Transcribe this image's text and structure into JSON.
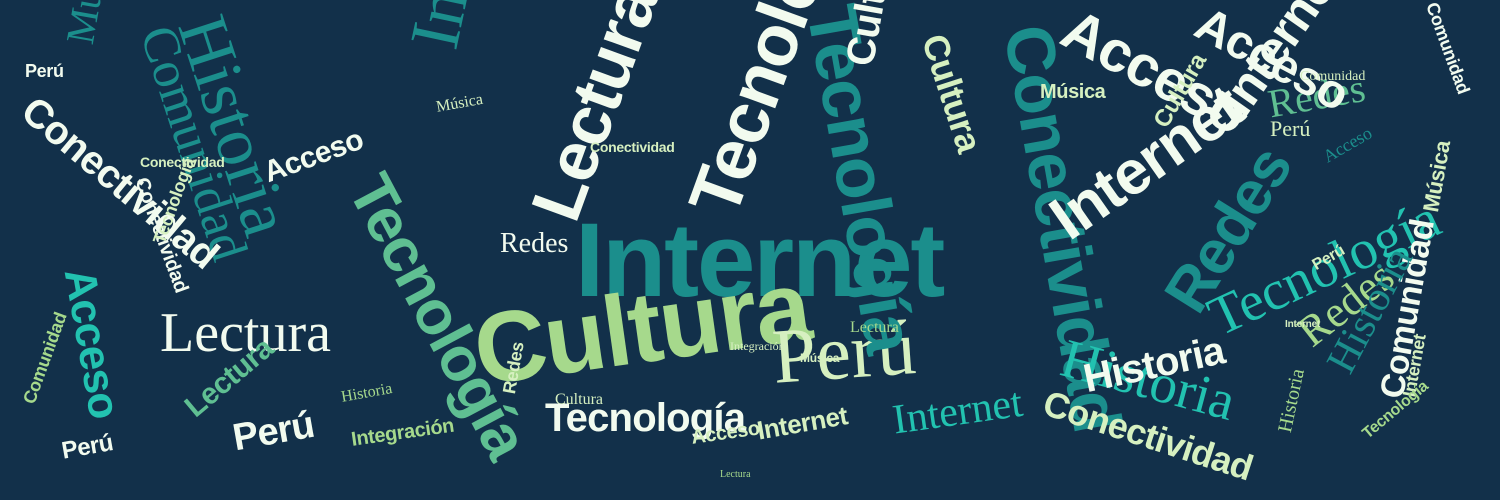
{
  "background": "#12304a",
  "palette": [
    "#f2fbef",
    "#d6f0c0",
    "#a6d98c",
    "#5fbf92",
    "#2fa79a",
    "#1b8e8c",
    "#22c2b0",
    "#7fd7a5"
  ],
  "words": [
    "Internet",
    "Cultura",
    "Perú",
    "Tecnología",
    "Historia",
    "Conectividad",
    "Lectura",
    "Redes",
    "Acceso",
    "Comunidad",
    "Integración",
    "Música"
  ]
}
